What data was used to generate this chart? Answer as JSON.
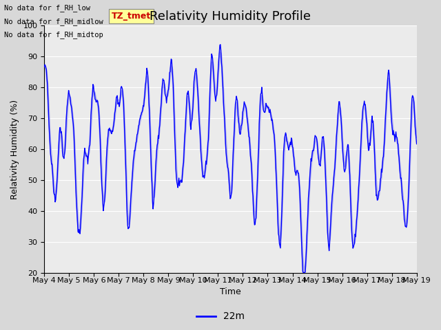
{
  "title": "Relativity Humidity Profile",
  "xlabel": "Time",
  "ylabel": "Relativity Humidity (%)",
  "ylim": [
    20,
    100
  ],
  "yticks": [
    20,
    30,
    40,
    50,
    60,
    70,
    80,
    90,
    100
  ],
  "line_color": "blue",
  "line_color2": "#aaaaee",
  "bg_color": "#e8e8e8",
  "plot_bg": "#ebebeb",
  "legend_label": "22m",
  "legend_line_color": "blue",
  "no_data_texts": [
    "No data for f_RH_low",
    "No data for f_RH_midlow",
    "No data for f_RH_midtop"
  ],
  "tz_label": "TZ_tmet",
  "tz_label_color": "#cc0000",
  "tz_box_color": "#ffff99",
  "xtick_labels": [
    "May 4",
    "May 5",
    "May 6",
    "May 7",
    "May 8",
    "May 9",
    "May 10",
    "May 11",
    "May 12",
    "May 13",
    "May 14",
    "May 15",
    "May 16",
    "May 17",
    "May 18",
    "May 19"
  ],
  "title_fontsize": 13,
  "axis_fontsize": 9,
  "tick_fontsize": 8,
  "figwidth": 6.4,
  "figheight": 4.8,
  "dpi": 100
}
